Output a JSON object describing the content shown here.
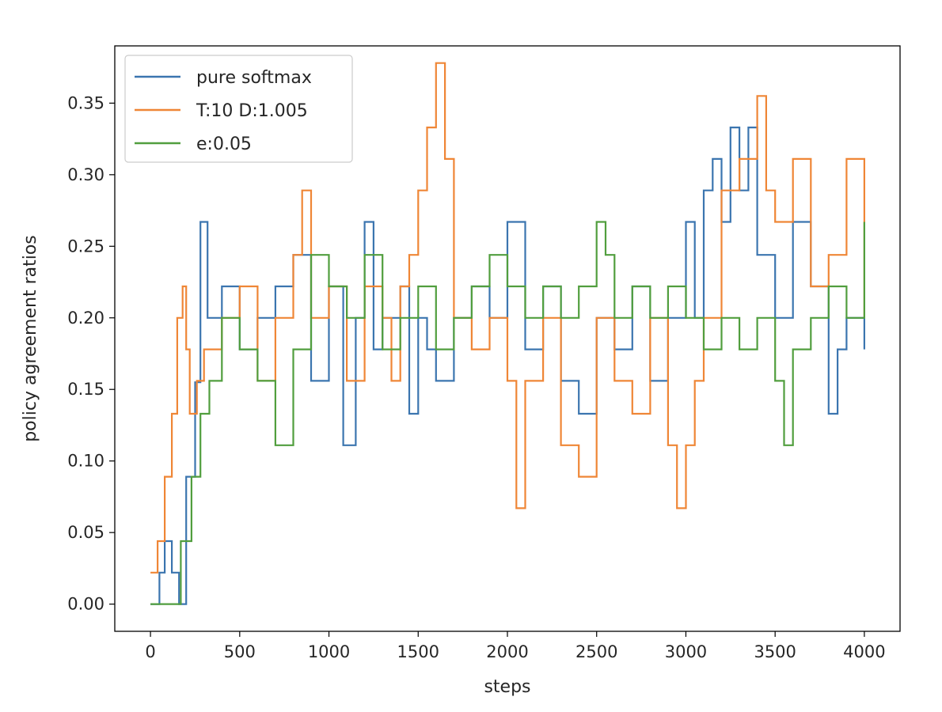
{
  "chart_data": {
    "type": "line",
    "title": "",
    "xlabel": "steps",
    "ylabel": "policy agreement ratios",
    "xlim": [
      -200,
      4200
    ],
    "ylim": [
      -0.019,
      0.39
    ],
    "xticks": [
      0,
      500,
      1000,
      1500,
      2000,
      2500,
      3000,
      3500,
      4000
    ],
    "xtick_labels": [
      "0",
      "500",
      "1000",
      "1500",
      "2000",
      "2500",
      "3000",
      "3500",
      "4000"
    ],
    "yticks": [
      0.0,
      0.05,
      0.1,
      0.15,
      0.2,
      0.25,
      0.3,
      0.35
    ],
    "ytick_labels": [
      "0.00",
      "0.05",
      "0.10",
      "0.15",
      "0.20",
      "0.25",
      "0.30",
      "0.35"
    ],
    "grid": false,
    "legend_position": "top-left",
    "series": [
      {
        "name": "pure softmax",
        "color": "#3b75af",
        "x": [
          0,
          50,
          80,
          120,
          160,
          200,
          250,
          280,
          320,
          400,
          500,
          600,
          700,
          800,
          900,
          1000,
          1080,
          1150,
          1200,
          1250,
          1300,
          1400,
          1450,
          1500,
          1550,
          1600,
          1700,
          1800,
          1900,
          2000,
          2100,
          2200,
          2300,
          2400,
          2500,
          2600,
          2700,
          2800,
          2900,
          3000,
          3050,
          3100,
          3150,
          3200,
          3250,
          3300,
          3350,
          3400,
          3500,
          3600,
          3700,
          3800,
          3850,
          3900,
          4000
        ],
        "values": [
          0.0,
          0.022,
          0.044,
          0.022,
          0.0,
          0.089,
          0.155,
          0.267,
          0.2,
          0.222,
          0.178,
          0.2,
          0.222,
          0.244,
          0.156,
          0.222,
          0.111,
          0.2,
          0.267,
          0.178,
          0.2,
          0.222,
          0.133,
          0.2,
          0.178,
          0.156,
          0.2,
          0.222,
          0.2,
          0.267,
          0.178,
          0.222,
          0.156,
          0.133,
          0.2,
          0.178,
          0.222,
          0.156,
          0.2,
          0.267,
          0.2,
          0.289,
          0.311,
          0.267,
          0.333,
          0.289,
          0.333,
          0.244,
          0.2,
          0.267,
          0.222,
          0.133,
          0.178,
          0.2,
          0.178
        ]
      },
      {
        "name": "T:10 D:1.005",
        "color": "#ef8636",
        "x": [
          0,
          40,
          80,
          120,
          150,
          180,
          200,
          220,
          260,
          300,
          400,
          500,
          600,
          700,
          800,
          850,
          900,
          1000,
          1100,
          1200,
          1300,
          1350,
          1400,
          1450,
          1500,
          1550,
          1600,
          1650,
          1700,
          1800,
          1900,
          2000,
          2050,
          2100,
          2200,
          2300,
          2400,
          2500,
          2600,
          2700,
          2800,
          2900,
          2950,
          3000,
          3050,
          3100,
          3200,
          3300,
          3400,
          3450,
          3500,
          3600,
          3700,
          3800,
          3900,
          4000
        ],
        "values": [
          0.022,
          0.044,
          0.089,
          0.133,
          0.2,
          0.222,
          0.178,
          0.133,
          0.156,
          0.178,
          0.2,
          0.222,
          0.156,
          0.2,
          0.244,
          0.289,
          0.2,
          0.222,
          0.156,
          0.222,
          0.2,
          0.156,
          0.222,
          0.244,
          0.289,
          0.333,
          0.378,
          0.311,
          0.2,
          0.178,
          0.2,
          0.156,
          0.067,
          0.156,
          0.2,
          0.111,
          0.089,
          0.2,
          0.156,
          0.133,
          0.2,
          0.111,
          0.067,
          0.111,
          0.156,
          0.2,
          0.289,
          0.311,
          0.355,
          0.289,
          0.267,
          0.311,
          0.222,
          0.244,
          0.311,
          0.2
        ]
      },
      {
        "name": "e:0.05",
        "color": "#519e3e",
        "x": [
          0,
          100,
          170,
          230,
          280,
          330,
          400,
          500,
          600,
          700,
          800,
          900,
          1000,
          1100,
          1200,
          1300,
          1400,
          1500,
          1600,
          1700,
          1800,
          1900,
          2000,
          2100,
          2200,
          2300,
          2400,
          2500,
          2550,
          2600,
          2700,
          2800,
          2900,
          3000,
          3100,
          3200,
          3300,
          3400,
          3500,
          3550,
          3600,
          3700,
          3800,
          3900,
          4000
        ],
        "values": [
          0.0,
          0.0,
          0.044,
          0.089,
          0.133,
          0.156,
          0.2,
          0.178,
          0.156,
          0.111,
          0.178,
          0.244,
          0.222,
          0.2,
          0.244,
          0.178,
          0.2,
          0.222,
          0.178,
          0.2,
          0.222,
          0.244,
          0.222,
          0.2,
          0.222,
          0.2,
          0.222,
          0.267,
          0.244,
          0.2,
          0.222,
          0.2,
          0.222,
          0.2,
          0.178,
          0.2,
          0.178,
          0.2,
          0.156,
          0.111,
          0.178,
          0.2,
          0.222,
          0.2,
          0.267
        ]
      }
    ]
  }
}
